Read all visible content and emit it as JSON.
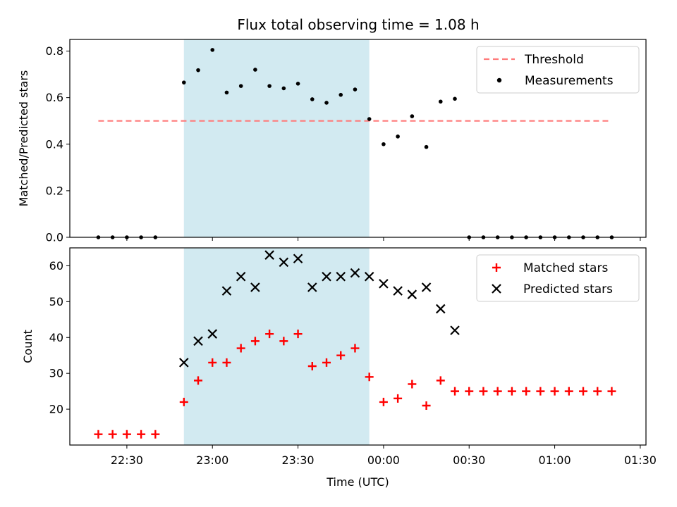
{
  "figure_title": "Flux total observing time = 1.08 h",
  "colors": {
    "threshold": "#ff7b7b",
    "measurement": "#000000",
    "matched": "#ff0000",
    "predicted": "#000000",
    "shade": "#add8e6"
  },
  "chart_data": [
    {
      "type": "scatter",
      "panel": "top",
      "title": "Flux total observing time = 1.08 h",
      "xlabel": "",
      "ylabel": "Matched/Predicted stars",
      "ylim": [
        0,
        0.85
      ],
      "yticks": [
        0.0,
        0.2,
        0.4,
        0.6,
        0.8
      ],
      "ytick_labels": [
        "0.0",
        "0.2",
        "0.4",
        "0.6",
        "0.8"
      ],
      "xticks": [
        "22:30",
        "23:00",
        "23:30",
        "00:00",
        "00:30",
        "01:00",
        "01:30"
      ],
      "shaded_interval": [
        "22:50",
        "23:55"
      ],
      "legend_position": "top-right",
      "threshold": {
        "name": "Threshold",
        "value": 0.5,
        "x_range": [
          "22:20",
          "01:20"
        ]
      },
      "series": [
        {
          "name": "Measurements",
          "x": [
            "22:20",
            "22:25",
            "22:30",
            "22:35",
            "22:40",
            "22:50",
            "22:55",
            "23:00",
            "23:05",
            "23:10",
            "23:15",
            "23:20",
            "23:25",
            "23:30",
            "23:35",
            "23:40",
            "23:45",
            "23:50",
            "23:55",
            "00:00",
            "00:05",
            "00:10",
            "00:15",
            "00:20",
            "00:25",
            "00:30",
            "00:35",
            "00:40",
            "00:45",
            "00:50",
            "00:55",
            "01:00",
            "01:05",
            "01:10",
            "01:15",
            "01:20"
          ],
          "values": [
            0,
            0,
            0,
            0,
            0,
            0.665,
            0.718,
            0.805,
            0.622,
            0.65,
            0.72,
            0.65,
            0.64,
            0.66,
            0.593,
            0.578,
            0.612,
            0.635,
            0.508,
            0.4,
            0.433,
            0.52,
            0.388,
            0.583,
            0.595,
            0,
            0,
            0,
            0,
            0,
            0,
            0,
            0,
            0,
            0,
            0
          ]
        }
      ]
    },
    {
      "type": "scatter",
      "panel": "bottom",
      "xlabel": "Time (UTC)",
      "ylabel": "Count",
      "ylim": [
        10,
        65
      ],
      "yticks": [
        20,
        30,
        40,
        50,
        60
      ],
      "ytick_labels": [
        "20",
        "30",
        "40",
        "50",
        "60"
      ],
      "xticks": [
        "22:30",
        "23:00",
        "23:30",
        "00:00",
        "00:30",
        "01:00",
        "01:30"
      ],
      "shaded_interval": [
        "22:50",
        "23:55"
      ],
      "legend_position": "top-right",
      "series": [
        {
          "name": "Matched stars",
          "marker": "+",
          "x": [
            "22:20",
            "22:25",
            "22:30",
            "22:35",
            "22:40",
            "22:50",
            "22:55",
            "23:00",
            "23:05",
            "23:10",
            "23:15",
            "23:20",
            "23:25",
            "23:30",
            "23:35",
            "23:40",
            "23:45",
            "23:50",
            "23:55",
            "00:00",
            "00:05",
            "00:10",
            "00:15",
            "00:20",
            "00:25",
            "00:30",
            "00:35",
            "00:40",
            "00:45",
            "00:50",
            "00:55",
            "01:00",
            "01:05",
            "01:10",
            "01:15",
            "01:20"
          ],
          "values": [
            13,
            13,
            13,
            13,
            13,
            22,
            28,
            33,
            33,
            37,
            39,
            41,
            39,
            41,
            32,
            33,
            35,
            37,
            29,
            22,
            23,
            27,
            21,
            28,
            25,
            25,
            25,
            25,
            25,
            25,
            25,
            25,
            25,
            25,
            25,
            25
          ]
        },
        {
          "name": "Predicted stars",
          "marker": "x",
          "x": [
            "22:50",
            "22:55",
            "23:00",
            "23:05",
            "23:10",
            "23:15",
            "23:20",
            "23:25",
            "23:30",
            "23:35",
            "23:40",
            "23:45",
            "23:50",
            "23:55",
            "00:00",
            "00:05",
            "00:10",
            "00:15",
            "00:20",
            "00:25"
          ],
          "values": [
            33,
            39,
            41,
            53,
            57,
            54,
            63,
            61,
            62,
            54,
            57,
            57,
            58,
            57,
            55,
            53,
            52,
            54,
            48,
            42
          ]
        }
      ]
    }
  ]
}
